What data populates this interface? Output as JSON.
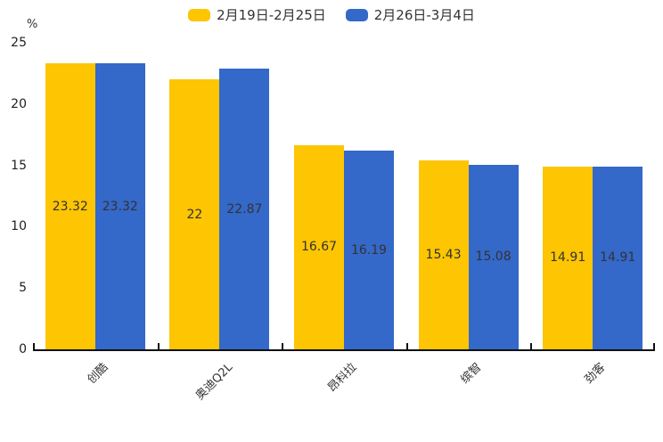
{
  "chart_data": {
    "type": "bar",
    "title": "",
    "categories": [
      "创酷",
      "奥迪Q2L",
      "昂科拉",
      "缤智",
      "劲客"
    ],
    "series": [
      {
        "name": "2月19日-2月25日",
        "color": "#FDC502",
        "values": [
          23.32,
          22,
          16.67,
          15.43,
          14.91
        ],
        "labels": [
          "23.32",
          "22",
          "16.67",
          "15.43",
          "14.91"
        ]
      },
      {
        "name": "2月26日-3月4日",
        "color": "#3468C9",
        "values": [
          23.32,
          22.87,
          16.19,
          15.08,
          14.91
        ],
        "labels": [
          "23.32",
          "22.87",
          "16.19",
          "15.08",
          "14.91"
        ]
      }
    ],
    "xlabel": "",
    "ylabel": "%",
    "yticks": [
      0,
      5,
      10,
      15,
      20,
      25
    ],
    "ylim": [
      0,
      25
    ],
    "legend_position": "top",
    "grid": false,
    "bar_value_labels": true,
    "colors": {
      "axis": "#111111",
      "text": "#333333",
      "background": "#FFFFFF"
    }
  }
}
